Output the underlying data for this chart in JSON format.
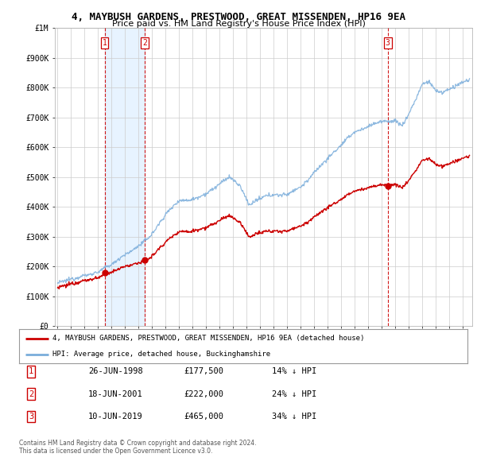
{
  "title": "4, MAYBUSH GARDENS, PRESTWOOD, GREAT MISSENDEN, HP16 9EA",
  "subtitle": "Price paid vs. HM Land Registry's House Price Index (HPI)",
  "red_label": "4, MAYBUSH GARDENS, PRESTWOOD, GREAT MISSENDEN, HP16 9EA (detached house)",
  "blue_label": "HPI: Average price, detached house, Buckinghamshire",
  "footer1": "Contains HM Land Registry data © Crown copyright and database right 2024.",
  "footer2": "This data is licensed under the Open Government Licence v3.0.",
  "transactions": [
    {
      "num": 1,
      "date": "26-JUN-1998",
      "price": "£177,500",
      "hpi": "14% ↓ HPI",
      "x": 1998.48,
      "val": 177500
    },
    {
      "num": 2,
      "date": "18-JUN-2001",
      "price": "£222,000",
      "hpi": "24% ↓ HPI",
      "x": 2001.46,
      "val": 222000
    },
    {
      "num": 3,
      "date": "10-JUN-2019",
      "price": "£465,000",
      "hpi": "34% ↓ HPI",
      "x": 2019.44,
      "val": 465000
    }
  ],
  "ylim": [
    0,
    1000000
  ],
  "yticks": [
    0,
    100000,
    200000,
    300000,
    400000,
    500000,
    600000,
    700000,
    800000,
    900000,
    1000000
  ],
  "ytick_labels": [
    "£0",
    "£100K",
    "£200K",
    "£300K",
    "£400K",
    "£500K",
    "£600K",
    "£700K",
    "£800K",
    "£900K",
    "£1M"
  ],
  "xlim_start": 1994.8,
  "xlim_end": 2025.7,
  "grid_color": "#cccccc",
  "red_color": "#cc0000",
  "blue_color": "#7aaddb",
  "shade_color": "#ddeeff",
  "vline_color": "#cc0000",
  "bg_color": "#ffffff"
}
